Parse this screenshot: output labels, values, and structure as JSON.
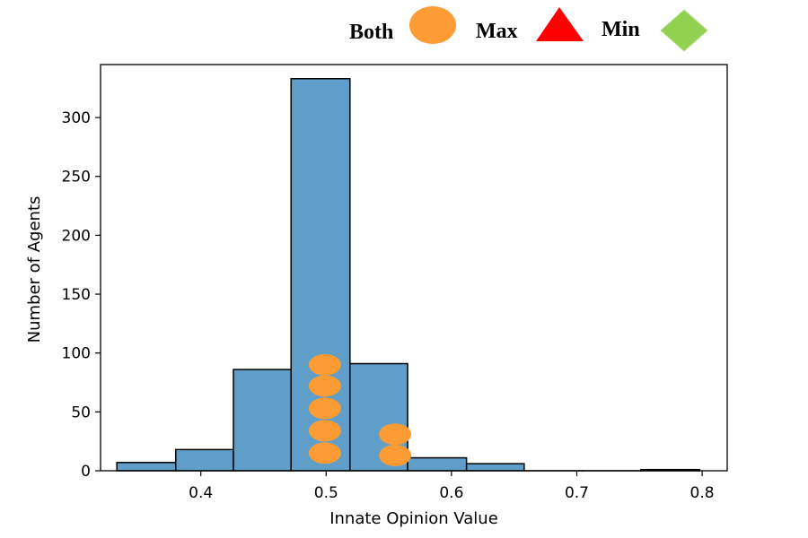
{
  "chart_data": {
    "type": "histogram",
    "xlabel": "Innate Opinion Value",
    "ylabel": "Number of Agents",
    "xlim": [
      0.32,
      0.82
    ],
    "ylim": [
      0,
      345
    ],
    "x_ticks": [
      0.4,
      0.5,
      0.6,
      0.7,
      0.8
    ],
    "x_tick_labels": [
      "0.4",
      "0.5",
      "0.6",
      "0.7",
      "0.8"
    ],
    "y_ticks": [
      0,
      50,
      100,
      150,
      200,
      250,
      300
    ],
    "y_tick_labels": [
      "0",
      "50",
      "100",
      "150",
      "200",
      "250",
      "300"
    ],
    "bar_color": "#5f9ec9",
    "bar_edge_color": "#000000",
    "bins": [
      {
        "x0": 0.333,
        "x1": 0.38,
        "count": 7
      },
      {
        "x0": 0.38,
        "x1": 0.426,
        "count": 18
      },
      {
        "x0": 0.426,
        "x1": 0.472,
        "count": 86
      },
      {
        "x0": 0.472,
        "x1": 0.519,
        "count": 333
      },
      {
        "x0": 0.519,
        "x1": 0.565,
        "count": 91
      },
      {
        "x0": 0.565,
        "x1": 0.612,
        "count": 11
      },
      {
        "x0": 0.612,
        "x1": 0.658,
        "count": 6
      },
      {
        "x0": 0.658,
        "x1": 0.705,
        "count": 0
      },
      {
        "x0": 0.705,
        "x1": 0.751,
        "count": 0
      },
      {
        "x0": 0.751,
        "x1": 0.798,
        "count": 1
      }
    ],
    "markers": {
      "both": {
        "color": "#fd9b34",
        "points": [
          {
            "x": 0.499,
            "y": 90
          },
          {
            "x": 0.499,
            "y": 72
          },
          {
            "x": 0.499,
            "y": 53
          },
          {
            "x": 0.499,
            "y": 34
          },
          {
            "x": 0.499,
            "y": 15
          },
          {
            "x": 0.555,
            "y": 31
          },
          {
            "x": 0.555,
            "y": 13
          }
        ]
      },
      "max": {
        "color": "#ff0000",
        "points": []
      },
      "min": {
        "color": "#92d050",
        "points": []
      }
    },
    "legend": {
      "position": "top-right",
      "entries": [
        {
          "label": "Both",
          "shape": "ellipse",
          "color": "#fd9b34"
        },
        {
          "label": "Max",
          "shape": "triangle",
          "color": "#ff0000"
        },
        {
          "label": "Min",
          "shape": "diamond",
          "color": "#92d050"
        }
      ]
    }
  }
}
